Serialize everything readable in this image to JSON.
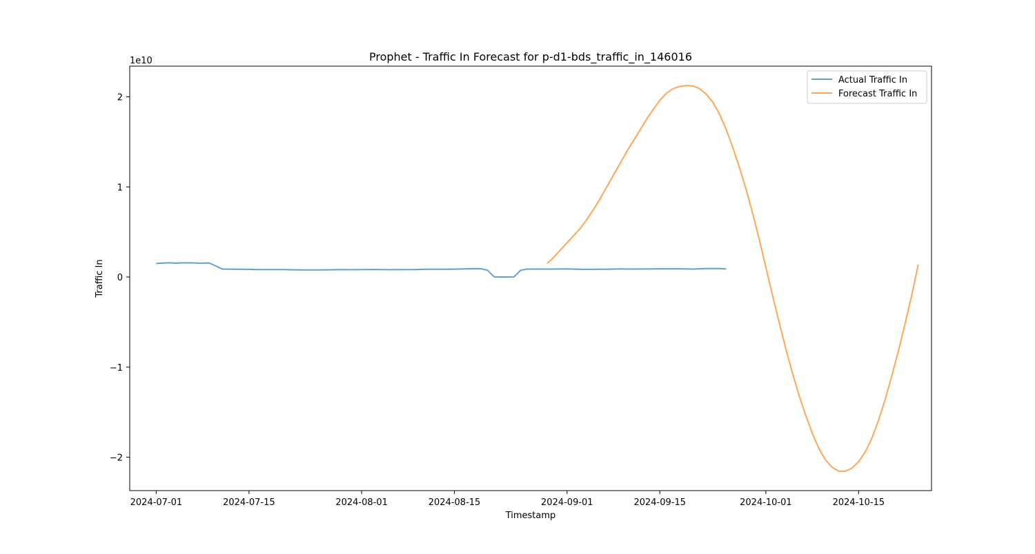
{
  "chart_data": {
    "type": "line",
    "title": "Prophet - Traffic In Forecast for p-d1-bds_traffic_in_146016",
    "xlabel": "Timestamp",
    "ylabel": "Traffic In",
    "y_multiplier_label": "1e10",
    "y_scale_factor": 10000000000,
    "xlim": [
      "2024-06-27",
      "2024-10-26"
    ],
    "ylim": [
      -2.37,
      2.34
    ],
    "x_ticks": [
      "2024-07-01",
      "2024-07-15",
      "2024-08-01",
      "2024-08-15",
      "2024-09-01",
      "2024-09-15",
      "2024-10-01",
      "2024-10-15"
    ],
    "y_ticks": [
      {
        "value": 2,
        "label": "2"
      },
      {
        "value": 1,
        "label": "1"
      },
      {
        "value": 0,
        "label": "0"
      },
      {
        "value": -1,
        "label": "−1"
      },
      {
        "value": -2,
        "label": "−2"
      }
    ],
    "grid": false,
    "legend_position": "top-right",
    "colors": {
      "actual": "#1f77b4",
      "forecast": "#ff7f0e"
    },
    "series": [
      {
        "name": "Actual Traffic In",
        "key": "actual",
        "points": [
          [
            "2024-07-01",
            0.15
          ],
          [
            "2024-07-02",
            0.155
          ],
          [
            "2024-07-03",
            0.158
          ],
          [
            "2024-07-04",
            0.154
          ],
          [
            "2024-07-05",
            0.157
          ],
          [
            "2024-07-06",
            0.158
          ],
          [
            "2024-07-07",
            0.155
          ],
          [
            "2024-07-08",
            0.154
          ],
          [
            "2024-07-09",
            0.156
          ],
          [
            "2024-07-11",
            0.088
          ],
          [
            "2024-07-13",
            0.086
          ],
          [
            "2024-07-15",
            0.085
          ],
          [
            "2024-07-16",
            0.083
          ],
          [
            "2024-07-20",
            0.082
          ],
          [
            "2024-07-23",
            0.078
          ],
          [
            "2024-07-26",
            0.079
          ],
          [
            "2024-07-29",
            0.083
          ],
          [
            "2024-07-31",
            0.081
          ],
          [
            "2024-08-03",
            0.084
          ],
          [
            "2024-08-05",
            0.081
          ],
          [
            "2024-08-09",
            0.083
          ],
          [
            "2024-08-11",
            0.087
          ],
          [
            "2024-08-14",
            0.086
          ],
          [
            "2024-08-16",
            0.089
          ],
          [
            "2024-08-18",
            0.093
          ],
          [
            "2024-08-19",
            0.092
          ],
          [
            "2024-08-20",
            0.075
          ],
          [
            "2024-08-21",
            0.002
          ],
          [
            "2024-08-22",
            0.0
          ],
          [
            "2024-08-23",
            0.0
          ],
          [
            "2024-08-24",
            0.002
          ],
          [
            "2024-08-25",
            0.075
          ],
          [
            "2024-08-26",
            0.088
          ],
          [
            "2024-08-30",
            0.088
          ],
          [
            "2024-09-01",
            0.09
          ],
          [
            "2024-09-03",
            0.085
          ],
          [
            "2024-09-07",
            0.087
          ],
          [
            "2024-09-09",
            0.09
          ],
          [
            "2024-09-10",
            0.088
          ],
          [
            "2024-09-13",
            0.089
          ],
          [
            "2024-09-15",
            0.091
          ],
          [
            "2024-09-18",
            0.091
          ],
          [
            "2024-09-20",
            0.088
          ],
          [
            "2024-09-22",
            0.094
          ],
          [
            "2024-09-24",
            0.094
          ],
          [
            "2024-09-25",
            0.09
          ]
        ]
      },
      {
        "name": "Forecast Traffic In",
        "key": "forecast",
        "points": [
          [
            "2024-08-29",
            0.15
          ],
          [
            "2024-08-30",
            0.22
          ],
          [
            "2024-08-31",
            0.3
          ],
          [
            "2024-09-01",
            0.38
          ],
          [
            "2024-09-02",
            0.46
          ],
          [
            "2024-09-03",
            0.54
          ],
          [
            "2024-09-04",
            0.64
          ],
          [
            "2024-09-05",
            0.75
          ],
          [
            "2024-09-06",
            0.87
          ],
          [
            "2024-09-07",
            1.0
          ],
          [
            "2024-09-08",
            1.13
          ],
          [
            "2024-09-09",
            1.26
          ],
          [
            "2024-09-10",
            1.39
          ],
          [
            "2024-09-11",
            1.51
          ],
          [
            "2024-09-12",
            1.63
          ],
          [
            "2024-09-13",
            1.75
          ],
          [
            "2024-09-14",
            1.86
          ],
          [
            "2024-09-15",
            1.96
          ],
          [
            "2024-09-16",
            2.04
          ],
          [
            "2024-09-17",
            2.09
          ],
          [
            "2024-09-18",
            2.115
          ],
          [
            "2024-09-19",
            2.125
          ],
          [
            "2024-09-20",
            2.12
          ],
          [
            "2024-09-21",
            2.09
          ],
          [
            "2024-09-22",
            2.03
          ],
          [
            "2024-09-23",
            1.94
          ],
          [
            "2024-09-24",
            1.81
          ],
          [
            "2024-09-25",
            1.64
          ],
          [
            "2024-09-26",
            1.44
          ],
          [
            "2024-09-27",
            1.22
          ],
          [
            "2024-09-28",
            0.98
          ],
          [
            "2024-09-29",
            0.71
          ],
          [
            "2024-09-30",
            0.42
          ],
          [
            "2024-10-01",
            0.11
          ],
          [
            "2024-10-02",
            -0.2
          ],
          [
            "2024-10-03",
            -0.5
          ],
          [
            "2024-10-04",
            -0.79
          ],
          [
            "2024-10-05",
            -1.06
          ],
          [
            "2024-10-06",
            -1.31
          ],
          [
            "2024-10-07",
            -1.53
          ],
          [
            "2024-10-08",
            -1.73
          ],
          [
            "2024-10-09",
            -1.9
          ],
          [
            "2024-10-10",
            -2.03
          ],
          [
            "2024-10-11",
            -2.11
          ],
          [
            "2024-10-12",
            -2.155
          ],
          [
            "2024-10-13",
            -2.155
          ],
          [
            "2024-10-14",
            -2.12
          ],
          [
            "2024-10-15",
            -2.05
          ],
          [
            "2024-10-16",
            -1.94
          ],
          [
            "2024-10-17",
            -1.79
          ],
          [
            "2024-10-18",
            -1.59
          ],
          [
            "2024-10-19",
            -1.36
          ],
          [
            "2024-10-20",
            -1.1
          ],
          [
            "2024-10-21",
            -0.82
          ],
          [
            "2024-10-22",
            -0.52
          ],
          [
            "2024-10-23",
            -0.21
          ],
          [
            "2024-10-24",
            0.14
          ]
        ]
      }
    ]
  }
}
